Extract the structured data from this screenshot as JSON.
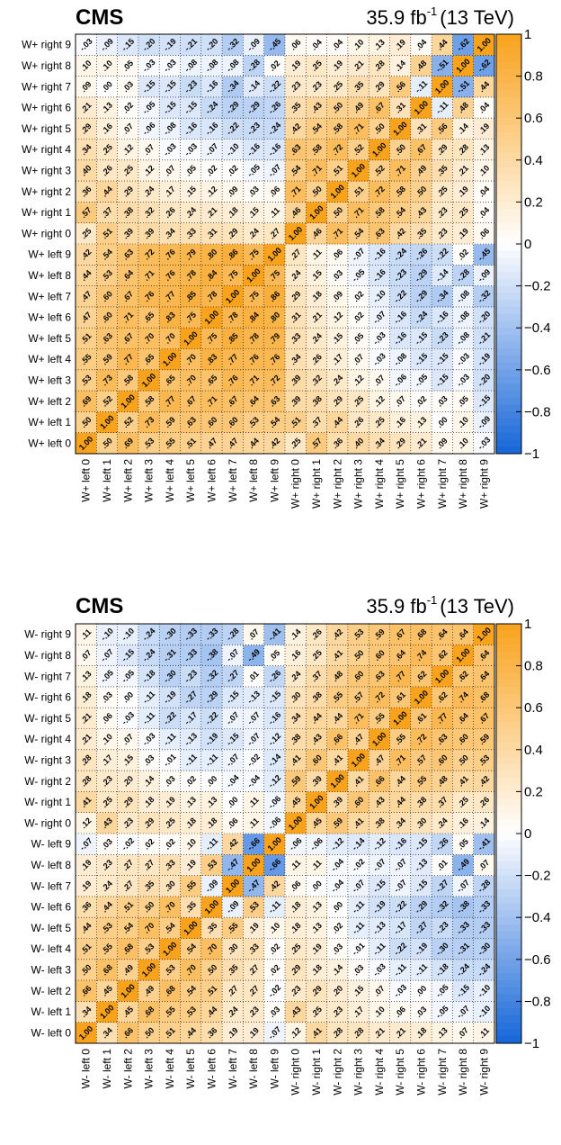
{
  "charts": [
    {
      "name": "wplus",
      "cms_label": "CMS",
      "lumi_main": "35.9 fb",
      "lumi_sup": "-1",
      "lumi_energy": "(13 TeV)",
      "colorbar_ticks": [
        "1",
        "0.8",
        "0.6",
        "0.4",
        "0.2",
        "0",
        "−0.2",
        "−0.4",
        "−0.6",
        "−0.8",
        "−1"
      ]
    },
    {
      "name": "wminus",
      "cms_label": "CMS",
      "lumi_main": "35.9 fb",
      "lumi_sup": "-1",
      "lumi_energy": "(13 TeV)",
      "colorbar_ticks": [
        "1",
        "0.8",
        "0.6",
        "0.4",
        "0.2",
        "0",
        "−0.2",
        "−0.4",
        "−0.6",
        "−0.8",
        "−1"
      ]
    }
  ],
  "chart_data": [
    {
      "type": "heatmap",
      "title": "",
      "colormap": {
        "min": -1,
        "max": 1,
        "neg": "#1565d8",
        "mid": "#ffffff",
        "pos": "#f9a21c"
      },
      "labels": [
        "W+ left 0",
        "W+ left 1",
        "W+ left 2",
        "W+ left 3",
        "W+ left 4",
        "W+ left 5",
        "W+ left 6",
        "W+ left 7",
        "W+ left 8",
        "W+ left 9",
        "W+ right 0",
        "W+ right 1",
        "W+ right 2",
        "W+ right 3",
        "W+ right 4",
        "W+ right 5",
        "W+ right 6",
        "W+ right 7",
        "W+ right 8",
        "W+ right 9"
      ],
      "matrix": [
        [
          1.0,
          0.5,
          0.69,
          0.53,
          0.55,
          0.51,
          0.47,
          0.47,
          0.44,
          0.42,
          0.25,
          0.57,
          0.36,
          0.4,
          0.34,
          0.29,
          0.21,
          0.09,
          0.1,
          -0.03
        ],
        [
          0.5,
          1.0,
          0.52,
          0.73,
          0.59,
          0.63,
          0.6,
          0.6,
          0.53,
          0.54,
          0.51,
          0.37,
          0.44,
          0.26,
          0.25,
          0.16,
          0.13,
          0.0,
          0.1,
          -0.09
        ],
        [
          0.69,
          0.52,
          1.0,
          0.58,
          0.77,
          0.67,
          0.71,
          0.67,
          0.64,
          0.63,
          0.39,
          0.38,
          0.29,
          0.25,
          0.12,
          0.07,
          0.02,
          0.03,
          0.05,
          -0.15
        ],
        [
          0.53,
          0.73,
          0.58,
          1.0,
          0.65,
          0.7,
          0.65,
          0.76,
          0.71,
          0.72,
          0.39,
          0.32,
          0.24,
          0.12,
          0.07,
          -0.06,
          -0.05,
          -0.15,
          -0.03,
          -0.2
        ],
        [
          0.55,
          0.59,
          0.77,
          0.65,
          1.0,
          0.7,
          0.83,
          0.77,
          0.76,
          0.76,
          0.34,
          0.26,
          0.17,
          0.07,
          -0.03,
          -0.08,
          -0.15,
          -0.15,
          -0.03,
          -0.19
        ],
        [
          0.51,
          0.63,
          0.67,
          0.7,
          0.7,
          1.0,
          0.75,
          0.85,
          0.78,
          0.79,
          0.33,
          0.24,
          0.15,
          0.05,
          -0.03,
          -0.16,
          -0.15,
          -0.23,
          -0.08,
          -0.21
        ],
        [
          0.47,
          0.6,
          0.71,
          0.65,
          0.83,
          0.75,
          1.0,
          0.78,
          0.84,
          0.8,
          0.31,
          0.21,
          0.12,
          0.02,
          -0.07,
          -0.16,
          -0.24,
          -0.16,
          -0.08,
          -0.2
        ],
        [
          0.47,
          0.6,
          0.67,
          0.76,
          0.77,
          0.85,
          0.78,
          1.0,
          0.75,
          0.86,
          0.29,
          0.18,
          0.09,
          0.02,
          -0.1,
          -0.22,
          -0.29,
          -0.34,
          -0.08,
          -0.32
        ],
        [
          0.44,
          0.53,
          0.64,
          0.71,
          0.76,
          0.78,
          0.84,
          0.75,
          1.0,
          0.75,
          0.24,
          0.15,
          0.03,
          -0.05,
          -0.16,
          -0.23,
          -0.29,
          -0.14,
          -0.28,
          -0.09
        ],
        [
          0.42,
          0.54,
          0.63,
          0.72,
          0.76,
          0.79,
          0.8,
          0.86,
          0.75,
          1.0,
          0.27,
          0.11,
          0.06,
          -0.07,
          -0.16,
          -0.24,
          -0.26,
          -0.22,
          0.02,
          -0.45
        ],
        [
          0.25,
          0.51,
          0.39,
          0.39,
          0.34,
          0.33,
          0.31,
          0.29,
          0.24,
          0.27,
          1.0,
          0.46,
          0.71,
          0.54,
          0.63,
          0.42,
          0.35,
          0.23,
          0.19,
          0.06
        ],
        [
          0.57,
          0.37,
          0.38,
          0.32,
          0.26,
          0.24,
          0.21,
          0.18,
          0.15,
          0.11,
          0.46,
          1.0,
          0.5,
          0.71,
          0.58,
          0.54,
          0.43,
          0.23,
          0.25,
          0.04
        ],
        [
          0.36,
          0.44,
          0.29,
          0.24,
          0.17,
          0.15,
          0.12,
          0.09,
          0.03,
          0.06,
          0.71,
          0.5,
          1.0,
          0.51,
          0.72,
          0.58,
          0.5,
          0.25,
          0.19,
          0.04
        ],
        [
          0.4,
          0.26,
          0.25,
          0.12,
          0.07,
          0.05,
          0.02,
          0.02,
          -0.05,
          -0.07,
          0.54,
          0.71,
          0.51,
          1.0,
          0.52,
          0.71,
          0.49,
          0.35,
          0.21,
          0.1
        ],
        [
          0.34,
          0.25,
          0.12,
          0.07,
          -0.03,
          -0.03,
          -0.07,
          -0.1,
          -0.16,
          -0.16,
          0.63,
          0.58,
          0.72,
          0.52,
          1.0,
          0.5,
          0.67,
          0.29,
          0.28,
          0.13
        ],
        [
          0.29,
          0.16,
          0.07,
          -0.06,
          -0.08,
          -0.16,
          -0.16,
          -0.22,
          -0.23,
          -0.24,
          0.42,
          0.54,
          0.58,
          0.71,
          0.5,
          1.0,
          0.31,
          0.56,
          0.14,
          0.19
        ],
        [
          0.21,
          0.13,
          0.02,
          -0.05,
          -0.15,
          -0.15,
          -0.24,
          -0.29,
          -0.29,
          -0.26,
          0.35,
          0.43,
          0.5,
          0.49,
          0.67,
          0.31,
          1.0,
          -0.11,
          0.48,
          0.04
        ],
        [
          0.09,
          0.0,
          0.03,
          -0.15,
          -0.15,
          -0.23,
          -0.16,
          -0.34,
          -0.14,
          -0.22,
          0.23,
          0.23,
          0.25,
          0.35,
          0.29,
          0.56,
          -0.11,
          1.0,
          -0.51,
          0.44
        ],
        [
          0.1,
          0.1,
          0.05,
          -0.03,
          -0.03,
          -0.08,
          -0.08,
          -0.08,
          -0.28,
          0.02,
          0.19,
          0.25,
          0.19,
          0.21,
          0.28,
          0.14,
          0.48,
          -0.51,
          1.0,
          -0.62
        ],
        [
          -0.03,
          -0.09,
          -0.15,
          -0.2,
          -0.19,
          -0.21,
          -0.2,
          -0.32,
          -0.09,
          -0.45,
          0.06,
          0.04,
          0.04,
          0.1,
          0.13,
          0.19,
          0.04,
          0.44,
          -0.62,
          1.0
        ]
      ]
    },
    {
      "type": "heatmap",
      "title": "",
      "colormap": {
        "min": -1,
        "max": 1,
        "neg": "#1565d8",
        "mid": "#ffffff",
        "pos": "#f9a21c"
      },
      "labels": [
        "W- left 0",
        "W- left 1",
        "W- left 2",
        "W- left 3",
        "W- left 4",
        "W- left 5",
        "W- left 6",
        "W- left 7",
        "W- left 8",
        "W- left 9",
        "W- right 0",
        "W- right 1",
        "W- right 2",
        "W- right 3",
        "W- right 4",
        "W- right 5",
        "W- right 6",
        "W- right 7",
        "W- right 8",
        "W- right 9"
      ],
      "matrix": [
        [
          1.0,
          0.34,
          0.66,
          0.5,
          0.51,
          0.44,
          0.36,
          0.19,
          0.19,
          -0.07,
          0.12,
          0.41,
          0.28,
          0.28,
          0.21,
          0.21,
          0.18,
          0.13,
          0.07,
          0.11
        ],
        [
          0.34,
          1.0,
          0.45,
          0.68,
          0.55,
          0.53,
          0.44,
          0.24,
          0.23,
          0.03,
          0.43,
          0.25,
          0.23,
          0.17,
          0.1,
          0.06,
          0.03,
          -0.05,
          -0.07,
          -0.1
        ],
        [
          0.66,
          0.45,
          1.0,
          0.49,
          0.68,
          0.54,
          0.51,
          0.27,
          0.27,
          -0.02,
          0.23,
          0.29,
          0.2,
          0.15,
          0.07,
          -0.03,
          0.0,
          -0.05,
          -0.15,
          -0.1
        ],
        [
          0.5,
          0.68,
          0.49,
          1.0,
          0.53,
          0.7,
          0.5,
          0.35,
          0.27,
          0.02,
          0.29,
          0.18,
          0.14,
          0.03,
          -0.03,
          -0.11,
          -0.11,
          -0.18,
          -0.24,
          -0.24
        ],
        [
          0.51,
          0.55,
          0.68,
          0.53,
          1.0,
          0.54,
          0.7,
          0.3,
          0.33,
          0.02,
          0.25,
          0.19,
          0.03,
          -0.01,
          -0.11,
          -0.22,
          -0.19,
          -0.3,
          -0.31,
          -0.3
        ],
        [
          0.44,
          0.53,
          0.54,
          0.7,
          0.54,
          1.0,
          0.35,
          0.55,
          0.19,
          0.1,
          0.18,
          0.13,
          0.02,
          -0.11,
          -0.13,
          -0.17,
          -0.27,
          -0.23,
          -0.33,
          -0.33
        ],
        [
          0.36,
          0.44,
          0.51,
          0.5,
          0.7,
          0.35,
          1.0,
          -0.09,
          0.53,
          -0.11,
          0.18,
          0.13,
          -0.0,
          -0.11,
          -0.19,
          -0.22,
          -0.29,
          -0.32,
          -0.38,
          -0.33
        ],
        [
          0.19,
          0.24,
          0.27,
          0.35,
          0.3,
          0.55,
          -0.09,
          1.0,
          -0.47,
          0.42,
          0.06,
          0.0,
          -0.04,
          -0.07,
          -0.15,
          -0.07,
          -0.15,
          -0.27,
          -0.07,
          -0.28
        ],
        [
          0.19,
          0.23,
          0.27,
          0.27,
          0.33,
          0.19,
          0.53,
          -0.47,
          1.0,
          -0.66,
          0.11,
          0.11,
          -0.04,
          -0.02,
          -0.07,
          -0.07,
          -0.13,
          0.01,
          -0.49,
          0.07
        ],
        [
          -0.07,
          0.03,
          -0.02,
          0.02,
          0.02,
          0.1,
          -0.11,
          0.42,
          -0.66,
          1.0,
          -0.06,
          -0.06,
          -0.12,
          -0.14,
          -0.12,
          -0.16,
          -0.15,
          -0.26,
          0.05,
          -0.41
        ],
        [
          0.12,
          0.43,
          0.23,
          0.29,
          0.25,
          0.18,
          0.18,
          0.06,
          0.11,
          -0.06,
          1.0,
          0.45,
          0.59,
          0.41,
          0.38,
          0.34,
          0.3,
          0.24,
          0.16,
          0.14
        ],
        [
          0.41,
          0.25,
          0.29,
          0.18,
          0.19,
          0.13,
          0.13,
          0.0,
          0.11,
          -0.06,
          0.45,
          1.0,
          0.39,
          0.6,
          0.43,
          0.44,
          0.38,
          0.37,
          0.25,
          0.26
        ],
        [
          0.28,
          0.23,
          0.2,
          0.14,
          0.03,
          0.02,
          -0.0,
          -0.04,
          -0.04,
          -0.12,
          0.59,
          0.39,
          1.0,
          0.41,
          0.66,
          0.44,
          0.55,
          0.48,
          0.41,
          0.42
        ],
        [
          0.28,
          0.17,
          0.15,
          0.03,
          -0.01,
          -0.11,
          -0.11,
          -0.07,
          -0.02,
          -0.14,
          0.41,
          0.6,
          0.41,
          1.0,
          0.47,
          0.71,
          0.57,
          0.6,
          0.5,
          0.53
        ],
        [
          0.21,
          0.1,
          0.07,
          -0.03,
          -0.11,
          -0.13,
          -0.19,
          -0.15,
          -0.07,
          -0.12,
          0.38,
          0.43,
          0.66,
          0.47,
          1.0,
          0.55,
          0.72,
          0.63,
          0.6,
          0.59
        ],
        [
          0.21,
          0.06,
          -0.03,
          -0.11,
          -0.22,
          -0.17,
          -0.22,
          -0.07,
          -0.07,
          -0.16,
          0.34,
          0.44,
          0.44,
          0.71,
          0.55,
          1.0,
          0.61,
          0.77,
          0.64,
          0.67
        ],
        [
          0.18,
          0.03,
          0.0,
          -0.11,
          -0.19,
          -0.27,
          -0.29,
          -0.15,
          -0.13,
          -0.15,
          0.3,
          0.38,
          0.55,
          0.57,
          0.72,
          0.61,
          1.0,
          0.62,
          0.74,
          0.68
        ],
        [
          0.13,
          -0.05,
          -0.05,
          -0.18,
          -0.3,
          -0.23,
          -0.32,
          -0.27,
          0.01,
          -0.26,
          0.24,
          0.37,
          0.48,
          0.6,
          0.63,
          0.77,
          0.62,
          1.0,
          0.62,
          0.64
        ],
        [
          0.07,
          -0.07,
          -0.15,
          -0.24,
          -0.31,
          -0.33,
          -0.38,
          -0.07,
          -0.49,
          0.05,
          0.16,
          0.25,
          0.41,
          0.5,
          0.6,
          0.64,
          0.74,
          0.62,
          1.0,
          0.64
        ],
        [
          0.11,
          -0.1,
          -0.1,
          -0.24,
          -0.3,
          -0.33,
          -0.33,
          -0.28,
          0.07,
          -0.41,
          0.14,
          0.26,
          0.42,
          0.53,
          0.59,
          0.67,
          0.68,
          0.64,
          0.64,
          1.0
        ]
      ]
    }
  ]
}
